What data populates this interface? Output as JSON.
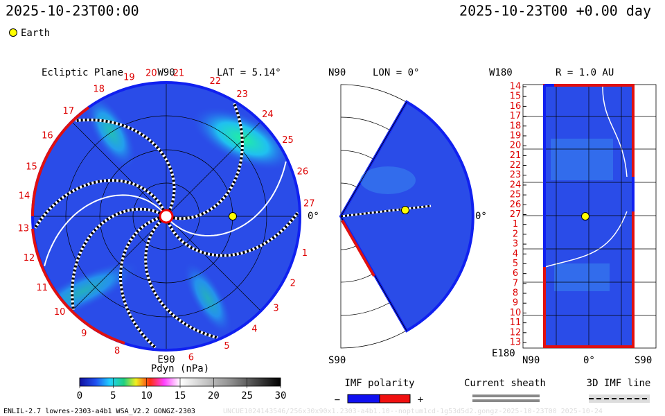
{
  "header": {
    "left": "2025-10-23T00:00",
    "right": "2025-10-23T00 +0.00 day",
    "marker": "Earth"
  },
  "ecliptic": {
    "title": "Ecliptic Plane",
    "top": "W90",
    "lat": "LAT = 5.14°",
    "bottom": "E90",
    "right": "0°",
    "rim": [
      "19",
      "20",
      "21",
      "22",
      "23",
      "24",
      "25",
      "26",
      "27",
      "1",
      "2",
      "3",
      "4",
      "5",
      "6",
      "8",
      "9",
      "10",
      "11",
      "12",
      "13",
      "14",
      "15",
      "16",
      "17",
      "18"
    ]
  },
  "meridional": {
    "top": "N90",
    "lon": "LON = 0°",
    "right": "0°",
    "bottom": "S90"
  },
  "radial": {
    "top": "W180",
    "r": "R = 1.0 AU",
    "bottom": "E180",
    "left": "N90",
    "center": "0°",
    "right": "S90",
    "rows": [
      "14",
      "15",
      "16",
      "17",
      "18",
      "19",
      "20",
      "21",
      "22",
      "23",
      "24",
      "25",
      "26",
      "27",
      "1",
      "2",
      "3",
      "4",
      "5",
      "6",
      "7",
      "8",
      "9",
      "10",
      "11",
      "12",
      "13"
    ]
  },
  "colorbar": {
    "label": "Pdyn (nPa)",
    "lim": [
      0,
      30
    ],
    "ticks": [
      0,
      5,
      10,
      15,
      20,
      25,
      30
    ]
  },
  "legend": {
    "imf": "IMF polarity",
    "minus": "−",
    "plus": "+",
    "sheath": "Current sheath",
    "line": "3D IMF line"
  },
  "footer": {
    "left": "ENLIL-2.7 lowres-2303-a4b1 WSA_V2.2 GONGZ-2303",
    "right": "UNCUE1024143546/256x30x90x1.2303-a4b1.10--noptum1cd-1g53d5d2.gongz-2025-10-23T00  2025-10-24"
  }
}
